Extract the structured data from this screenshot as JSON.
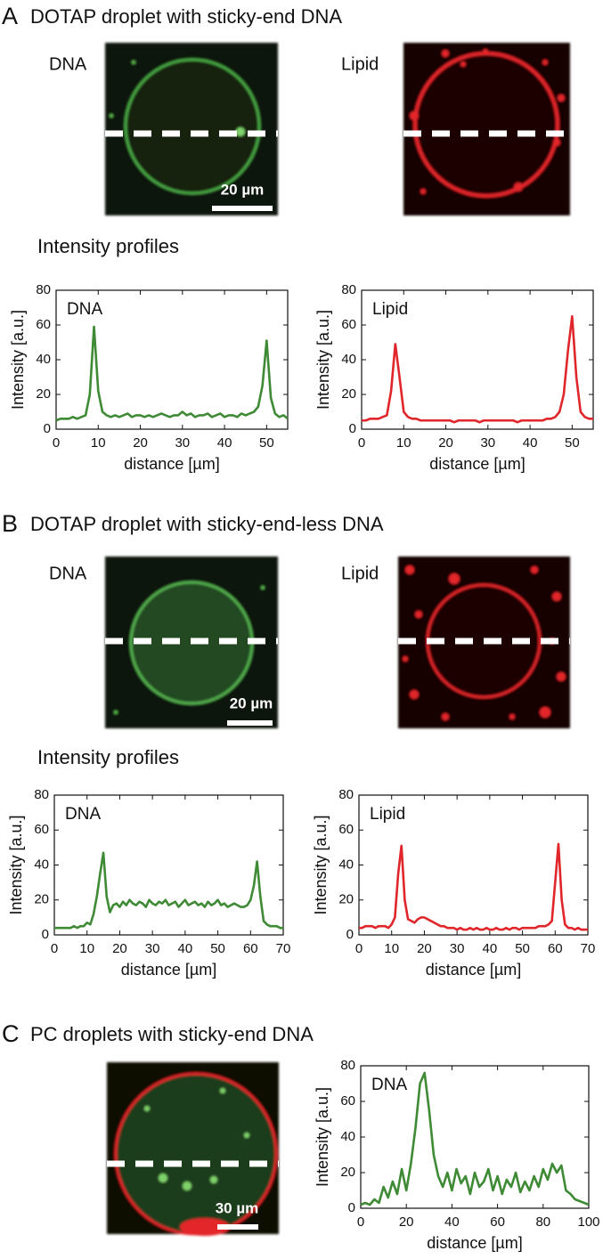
{
  "panels": [
    {
      "letter": "A",
      "title": "DOTAP droplet with sticky-end DNA",
      "images": [
        {
          "label": "DNA"
        },
        {
          "label": "Lipid"
        }
      ],
      "scale_bar": "20 µm",
      "subtitle": "Intensity profiles"
    },
    {
      "letter": "B",
      "title": "DOTAP droplet with sticky-end-less DNA",
      "images": [
        {
          "label": "DNA"
        },
        {
          "label": "Lipid"
        }
      ],
      "scale_bar": "20 µm",
      "subtitle": "Intensity profiles"
    },
    {
      "letter": "C",
      "title": "PC droplets with sticky-end DNA",
      "scale_bar": "30 µm"
    }
  ],
  "chart_data": [
    {
      "type": "line",
      "xlabel": "distance [µm]",
      "ylabel": "Intensity [a.u.]",
      "xlim": [
        0,
        55
      ],
      "ylim": [
        0,
        80
      ],
      "xticks": [
        0,
        10,
        20,
        30,
        40,
        50
      ],
      "yticks": [
        0,
        20,
        40,
        60,
        80
      ],
      "x": [
        0,
        1,
        2,
        3,
        4,
        5,
        6,
        7,
        8,
        9,
        10,
        11,
        12,
        13,
        14,
        15,
        16,
        17,
        18,
        19,
        20,
        21,
        22,
        23,
        24,
        25,
        26,
        27,
        28,
        29,
        30,
        31,
        32,
        33,
        34,
        35,
        36,
        37,
        38,
        39,
        40,
        41,
        42,
        43,
        44,
        45,
        46,
        47,
        48,
        49,
        50,
        51,
        52,
        53,
        54,
        55
      ],
      "series": [
        {
          "name": "DNA",
          "color": "#3e8a35",
          "values": [
            5,
            6,
            6,
            6,
            7,
            6,
            7,
            8,
            20,
            59,
            22,
            10,
            8,
            7,
            8,
            7,
            8,
            9,
            7,
            8,
            8,
            7,
            8,
            7,
            8,
            9,
            8,
            7,
            8,
            8,
            10,
            8,
            9,
            7,
            8,
            8,
            9,
            7,
            8,
            9,
            7,
            8,
            8,
            7,
            9,
            8,
            9,
            10,
            13,
            25,
            51,
            18,
            9,
            7,
            8,
            6
          ]
        }
      ]
    },
    {
      "type": "line",
      "xlabel": "distance [µm]",
      "ylabel": "Intensity [a.u.]",
      "xlim": [
        0,
        55
      ],
      "ylim": [
        0,
        80
      ],
      "xticks": [
        0,
        10,
        20,
        30,
        40,
        50
      ],
      "yticks": [
        0,
        20,
        40,
        60,
        80
      ],
      "x": [
        0,
        1,
        2,
        3,
        4,
        5,
        6,
        7,
        8,
        9,
        10,
        11,
        12,
        13,
        14,
        15,
        16,
        17,
        18,
        19,
        20,
        21,
        22,
        23,
        24,
        25,
        26,
        27,
        28,
        29,
        30,
        31,
        32,
        33,
        34,
        35,
        36,
        37,
        38,
        39,
        40,
        41,
        42,
        43,
        44,
        45,
        46,
        47,
        48,
        49,
        50,
        51,
        52,
        53,
        54,
        55
      ],
      "series": [
        {
          "name": "Lipid",
          "color": "#e0262a",
          "values": [
            5,
            5,
            6,
            6,
            6,
            7,
            8,
            22,
            49,
            30,
            10,
            7,
            6,
            6,
            5,
            5,
            5,
            5,
            5,
            5,
            5,
            5,
            4,
            5,
            5,
            5,
            5,
            5,
            4,
            5,
            5,
            5,
            5,
            5,
            5,
            5,
            5,
            4,
            5,
            5,
            5,
            5,
            5,
            5,
            6,
            6,
            7,
            10,
            20,
            45,
            65,
            30,
            10,
            7,
            6,
            6
          ]
        }
      ]
    },
    {
      "type": "line",
      "xlabel": "distance [µm]",
      "ylabel": "Intensity [a.u.]",
      "xlim": [
        0,
        70
      ],
      "ylim": [
        0,
        80
      ],
      "xticks": [
        0,
        10,
        20,
        30,
        40,
        50,
        60,
        70
      ],
      "yticks": [
        0,
        20,
        40,
        60,
        80
      ],
      "x": [
        0,
        1,
        2,
        3,
        4,
        5,
        6,
        7,
        8,
        9,
        10,
        11,
        12,
        13,
        14,
        15,
        16,
        17,
        18,
        19,
        20,
        21,
        22,
        23,
        24,
        25,
        26,
        27,
        28,
        29,
        30,
        31,
        32,
        33,
        34,
        35,
        36,
        37,
        38,
        39,
        40,
        41,
        42,
        43,
        44,
        45,
        46,
        47,
        48,
        49,
        50,
        51,
        52,
        53,
        54,
        55,
        56,
        57,
        58,
        59,
        60,
        61,
        62,
        63,
        64,
        65,
        66,
        67,
        68,
        69,
        70
      ],
      "series": [
        {
          "name": "DNA",
          "color": "#3e8a35",
          "values": [
            4,
            4,
            4,
            4,
            4,
            4,
            5,
            4,
            5,
            5,
            7,
            6,
            12,
            22,
            35,
            47,
            22,
            13,
            17,
            18,
            16,
            19,
            17,
            20,
            18,
            17,
            19,
            18,
            16,
            20,
            18,
            17,
            19,
            18,
            20,
            17,
            18,
            19,
            16,
            18,
            20,
            17,
            18,
            19,
            17,
            18,
            16,
            19,
            17,
            18,
            20,
            17,
            18,
            16,
            17,
            18,
            17,
            16,
            16,
            17,
            20,
            28,
            42,
            22,
            8,
            6,
            5,
            5,
            5,
            4,
            4
          ]
        }
      ]
    },
    {
      "type": "line",
      "xlabel": "distance [µm]",
      "ylabel": "Intensity [a.u.]",
      "xlim": [
        0,
        70
      ],
      "ylim": [
        0,
        80
      ],
      "xticks": [
        0,
        10,
        20,
        30,
        40,
        50,
        60,
        70
      ],
      "yticks": [
        0,
        20,
        40,
        60,
        80
      ],
      "x": [
        0,
        1,
        2,
        3,
        4,
        5,
        6,
        7,
        8,
        9,
        10,
        11,
        12,
        13,
        14,
        15,
        16,
        17,
        18,
        19,
        20,
        21,
        22,
        23,
        24,
        25,
        26,
        27,
        28,
        29,
        30,
        31,
        32,
        33,
        34,
        35,
        36,
        37,
        38,
        39,
        40,
        41,
        42,
        43,
        44,
        45,
        46,
        47,
        48,
        49,
        50,
        51,
        52,
        53,
        54,
        55,
        56,
        57,
        58,
        59,
        60,
        61,
        62,
        63,
        64,
        65,
        66,
        67,
        68,
        69,
        70
      ],
      "series": [
        {
          "name": "Lipid",
          "color": "#e0262a",
          "values": [
            4,
            4,
            5,
            5,
            5,
            4,
            5,
            5,
            5,
            4,
            6,
            10,
            35,
            51,
            20,
            9,
            8,
            7,
            9,
            10,
            10,
            9,
            8,
            7,
            6,
            5,
            5,
            4,
            4,
            4,
            3,
            4,
            3,
            3,
            4,
            3,
            4,
            3,
            3,
            4,
            3,
            3,
            4,
            3,
            3,
            4,
            3,
            4,
            4,
            3,
            4,
            4,
            4,
            4,
            4,
            5,
            5,
            5,
            6,
            8,
            30,
            52,
            20,
            6,
            4,
            4,
            3,
            4,
            3,
            3,
            3
          ]
        }
      ]
    },
    {
      "type": "line",
      "xlabel": "distance [µm]",
      "ylabel": "Intensity [a.u.]",
      "xlim": [
        0,
        100
      ],
      "ylim": [
        0,
        80
      ],
      "xticks": [
        0,
        20,
        40,
        60,
        80,
        100
      ],
      "yticks": [
        0,
        20,
        40,
        60,
        80
      ],
      "x": [
        0,
        2,
        4,
        6,
        8,
        10,
        12,
        14,
        16,
        18,
        20,
        22,
        24,
        26,
        28,
        30,
        32,
        34,
        36,
        38,
        40,
        42,
        44,
        46,
        48,
        50,
        52,
        54,
        56,
        58,
        60,
        62,
        64,
        66,
        68,
        70,
        72,
        74,
        76,
        78,
        80,
        82,
        84,
        86,
        88,
        90,
        92,
        94,
        96,
        98,
        100
      ],
      "series": [
        {
          "name": "DNA",
          "color": "#3e8a35",
          "values": [
            2,
            3,
            2,
            5,
            3,
            12,
            6,
            15,
            8,
            22,
            10,
            25,
            45,
            70,
            76,
            55,
            30,
            18,
            12,
            20,
            10,
            22,
            14,
            18,
            8,
            20,
            12,
            15,
            22,
            10,
            18,
            8,
            16,
            12,
            20,
            9,
            15,
            10,
            18,
            12,
            22,
            16,
            25,
            20,
            24,
            10,
            8,
            5,
            4,
            3,
            2
          ]
        }
      ]
    }
  ]
}
